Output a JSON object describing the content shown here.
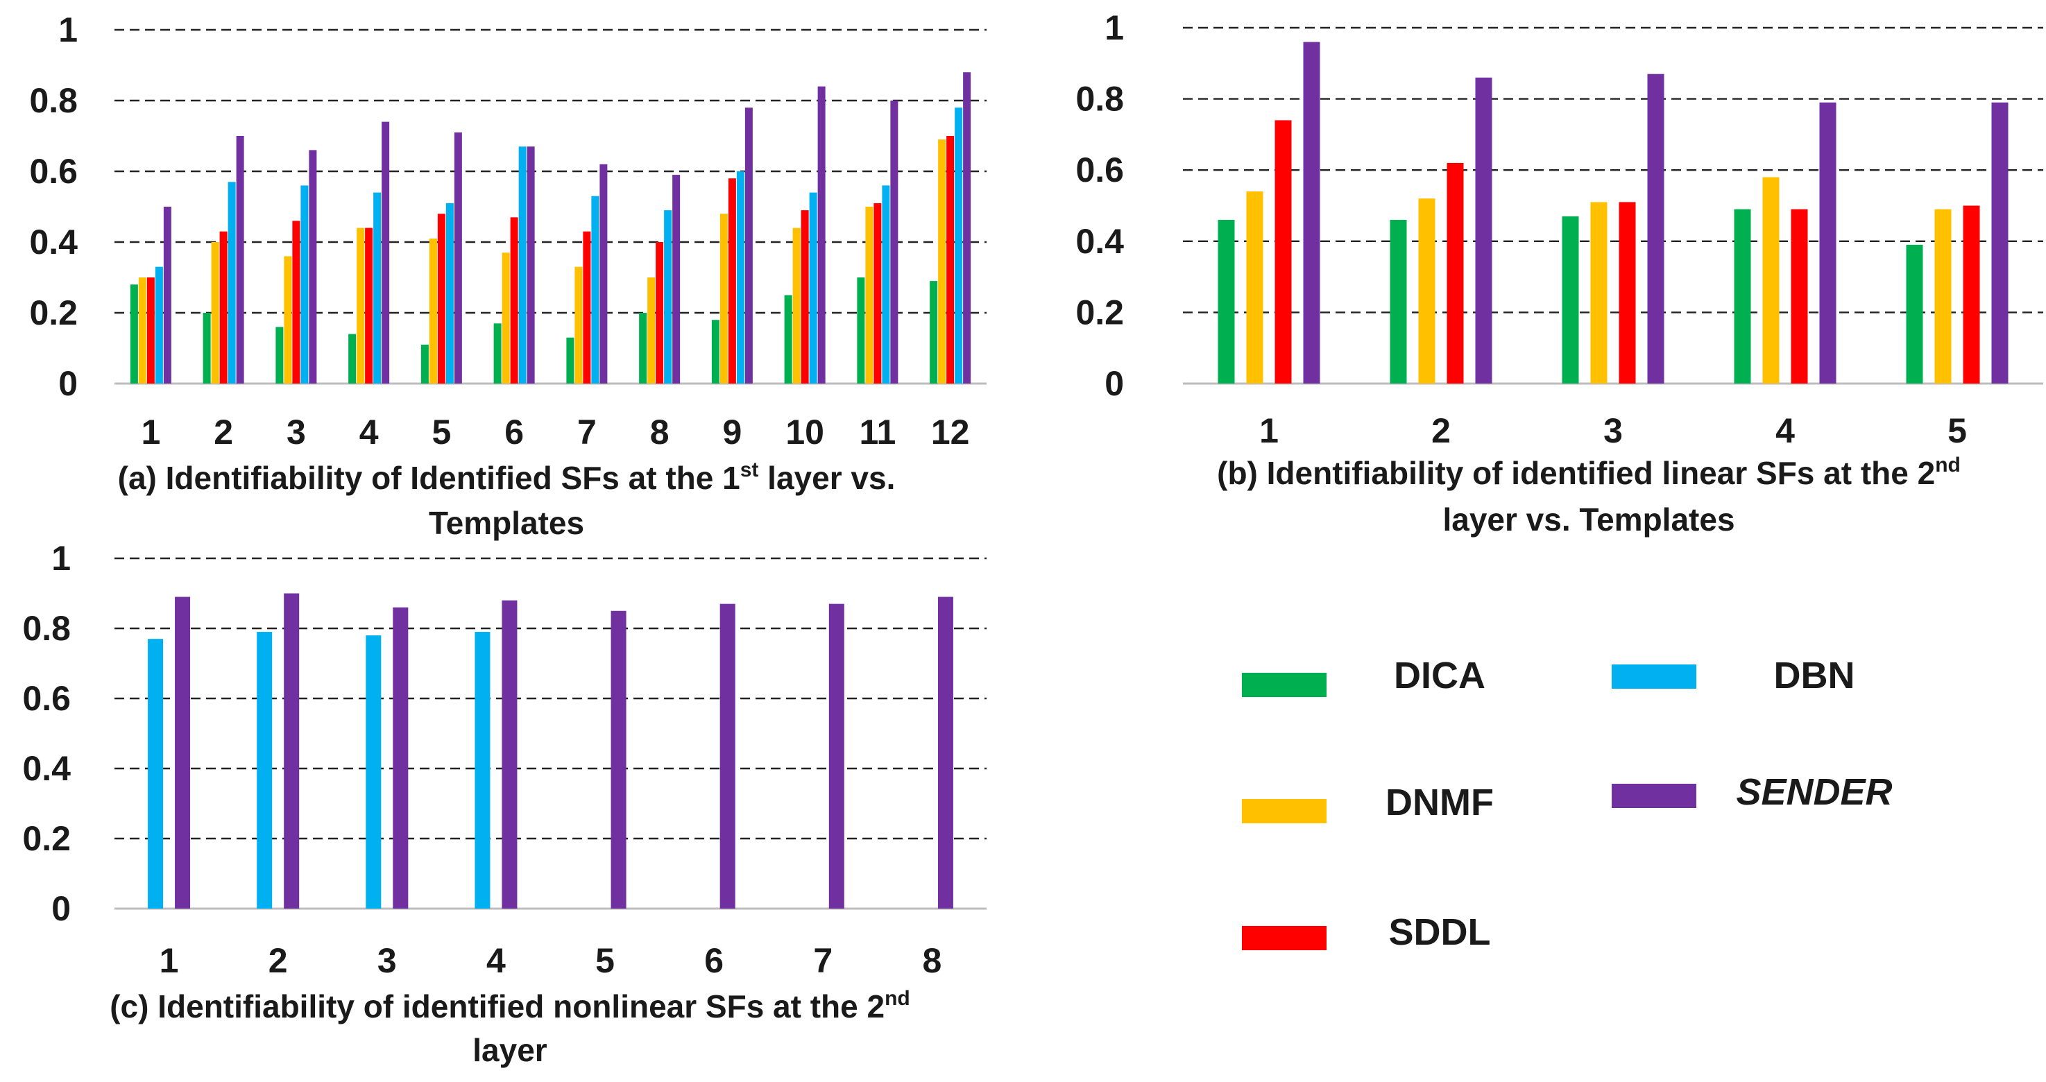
{
  "colors": {
    "DICA": "#00b050",
    "DNMF": "#ffc000",
    "SDDL": "#ff0000",
    "DBN": "#00b0f0",
    "SENDER": "#7030a0"
  },
  "legend": {
    "items": [
      {
        "name": "DICA",
        "color": "#00b050",
        "italic": false
      },
      {
        "name": "DNMF",
        "color": "#ffc000",
        "italic": false
      },
      {
        "name": "SDDL",
        "color": "#ff0000",
        "italic": false
      },
      {
        "name": "DBN",
        "color": "#00b0f0",
        "italic": false
      },
      {
        "name": "SENDER",
        "color": "#7030a0",
        "italic": true
      }
    ]
  },
  "chart_data": [
    {
      "id": "a",
      "type": "bar",
      "caption": {
        "line1_before": "(a) Identifiability of Identified SFs at the 1",
        "line1_sup": "st",
        "line1_after": " layer vs.",
        "line2": "Templates"
      },
      "ylim": [
        0,
        1
      ],
      "yticks": [
        "0",
        "0.2",
        "0.4",
        "0.6",
        "0.8",
        "1"
      ],
      "categories": [
        "1",
        "2",
        "3",
        "4",
        "5",
        "6",
        "7",
        "8",
        "9",
        "10",
        "11",
        "12"
      ],
      "series": [
        {
          "name": "DICA",
          "values": [
            0.28,
            0.2,
            0.16,
            0.14,
            0.11,
            0.17,
            0.13,
            0.2,
            0.18,
            0.25,
            0.3,
            0.29
          ]
        },
        {
          "name": "DNMF",
          "values": [
            0.3,
            0.4,
            0.36,
            0.44,
            0.41,
            0.37,
            0.33,
            0.3,
            0.48,
            0.44,
            0.5,
            0.69
          ]
        },
        {
          "name": "SDDL",
          "values": [
            0.3,
            0.43,
            0.46,
            0.44,
            0.48,
            0.47,
            0.43,
            0.4,
            0.58,
            0.49,
            0.51,
            0.7
          ]
        },
        {
          "name": "DBN",
          "values": [
            0.33,
            0.57,
            0.56,
            0.54,
            0.51,
            0.67,
            0.53,
            0.49,
            0.6,
            0.54,
            0.56,
            0.78
          ]
        },
        {
          "name": "SENDER",
          "values": [
            0.5,
            0.7,
            0.66,
            0.74,
            0.71,
            0.67,
            0.62,
            0.59,
            0.78,
            0.84,
            0.8,
            0.88
          ]
        }
      ]
    },
    {
      "id": "b",
      "type": "bar",
      "caption": {
        "line1_before": "(b) Identifiability of identified linear SFs at the 2",
        "line1_sup": "nd",
        "line1_after": "",
        "line2": "layer vs. Templates"
      },
      "ylim": [
        0,
        1
      ],
      "yticks": [
        "0",
        "0.2",
        "0.4",
        "0.6",
        "0.8",
        "1"
      ],
      "categories": [
        "1",
        "2",
        "3",
        "4",
        "5"
      ],
      "series": [
        {
          "name": "DICA",
          "values": [
            0.46,
            0.46,
            0.47,
            0.49,
            0.39
          ]
        },
        {
          "name": "DNMF",
          "values": [
            0.54,
            0.52,
            0.51,
            0.58,
            0.49
          ]
        },
        {
          "name": "SDDL",
          "values": [
            0.74,
            0.62,
            0.51,
            0.49,
            0.5
          ]
        },
        {
          "name": "SENDER",
          "values": [
            0.96,
            0.86,
            0.87,
            0.79,
            0.79
          ]
        }
      ]
    },
    {
      "id": "c",
      "type": "bar",
      "caption": {
        "line1_before": "(c) Identifiability of identified nonlinear SFs at the 2",
        "line1_sup": "nd",
        "line1_after": "",
        "line2": "layer"
      },
      "ylim": [
        0,
        1
      ],
      "yticks": [
        "0",
        "0.2",
        "0.4",
        "0.6",
        "0.8",
        "1"
      ],
      "categories": [
        "1",
        "2",
        "3",
        "4",
        "5",
        "6",
        "7",
        "8"
      ],
      "series": [
        {
          "name": "DBN",
          "values": [
            0.77,
            0.79,
            0.78,
            0.79,
            null,
            null,
            null,
            null
          ]
        },
        {
          "name": "SENDER",
          "values": [
            0.89,
            0.9,
            0.86,
            0.88,
            0.85,
            0.87,
            0.87,
            0.89
          ]
        }
      ]
    }
  ]
}
